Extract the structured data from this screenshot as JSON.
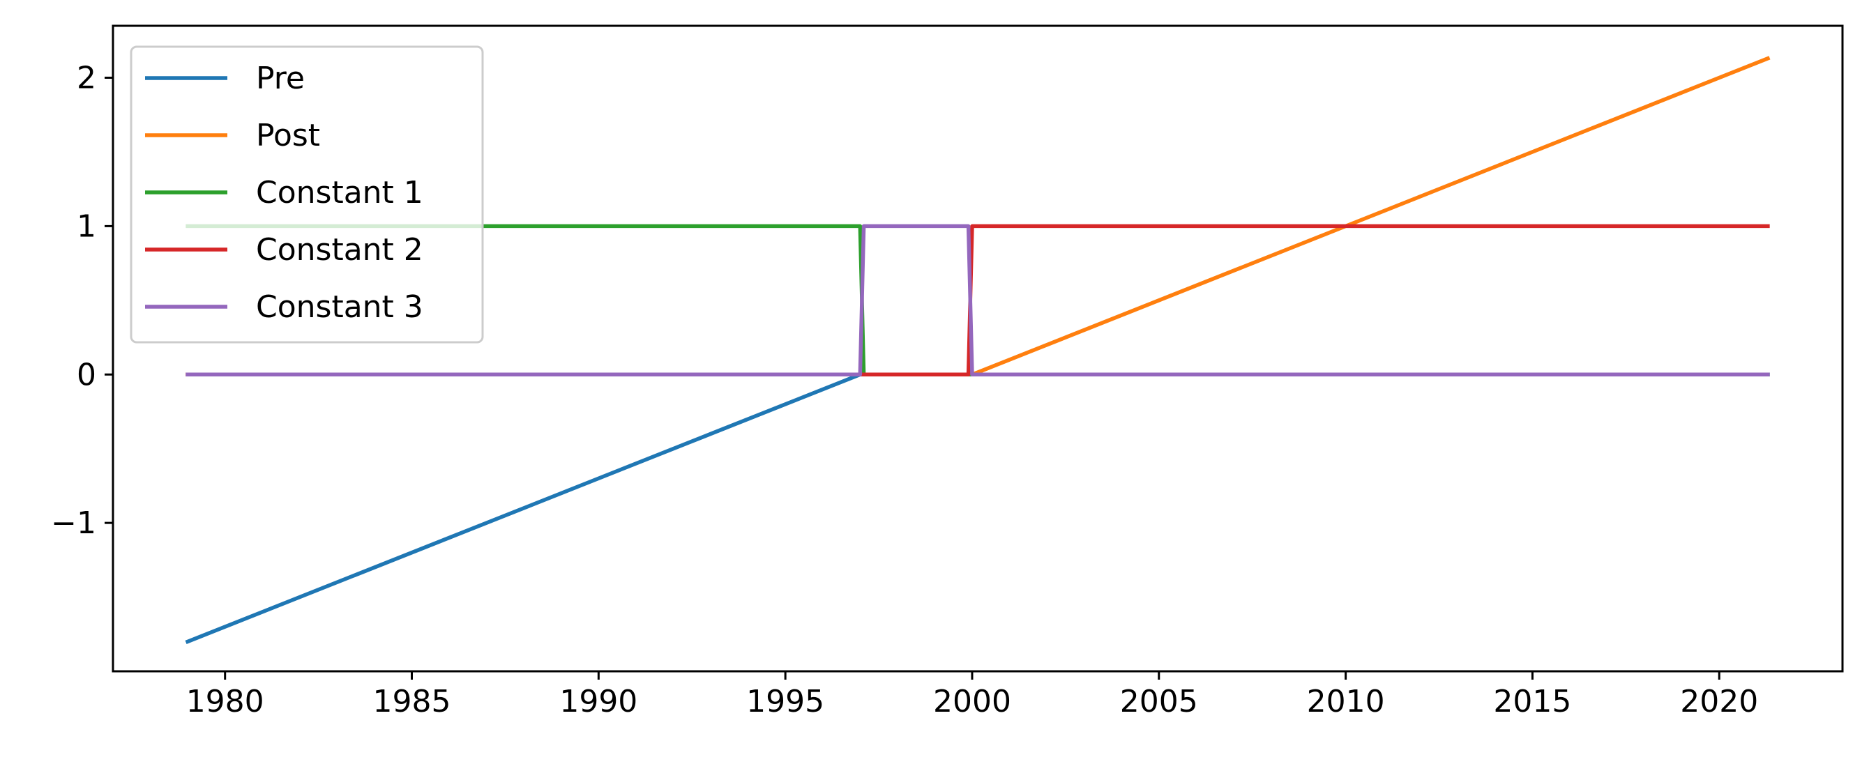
{
  "chart_data": {
    "type": "line",
    "title": "",
    "xlabel": "",
    "ylabel": "",
    "xlim": [
      1977.0,
      2023.3
    ],
    "ylim": [
      -2.0,
      2.35
    ],
    "grid": false,
    "legend_position": "upper-left",
    "x_ticks": [
      1980,
      1985,
      1990,
      1995,
      2000,
      2005,
      2010,
      2015,
      2020
    ],
    "x_tick_labels": [
      "1980",
      "1985",
      "1990",
      "1995",
      "2000",
      "2005",
      "2010",
      "2015",
      "2020"
    ],
    "y_ticks": [
      2,
      1,
      0,
      -1
    ],
    "y_tick_labels": [
      "2",
      "1",
      "0",
      "−1"
    ],
    "series": [
      {
        "name": "Pre",
        "color": "#1f77b4",
        "x": [
          1979.0,
          1997.0,
          2000.0,
          2021.3
        ],
        "y": [
          -1.8,
          0.0,
          0.0,
          0.0
        ]
      },
      {
        "name": "Post",
        "color": "#ff7f0e",
        "x": [
          1979.0,
          1997.0,
          2000.0,
          2021.3
        ],
        "y": [
          0.0,
          0.0,
          0.0,
          2.13
        ]
      },
      {
        "name": "Constant 1",
        "color": "#2ca02c",
        "x": [
          1979.0,
          1997.0,
          1997.1,
          2021.3
        ],
        "y": [
          1.0,
          1.0,
          0.0,
          0.0
        ]
      },
      {
        "name": "Constant 2",
        "color": "#d62728",
        "x": [
          1979.0,
          1997.0,
          1999.9,
          2000.0,
          2021.3
        ],
        "y": [
          0.0,
          0.0,
          0.0,
          1.0,
          1.0
        ]
      },
      {
        "name": "Constant 3",
        "color": "#9467bd",
        "x": [
          1979.0,
          1997.0,
          1997.1,
          1999.9,
          2000.0,
          2021.3
        ],
        "y": [
          0.0,
          0.0,
          1.0,
          1.0,
          0.0,
          0.0
        ]
      }
    ]
  }
}
